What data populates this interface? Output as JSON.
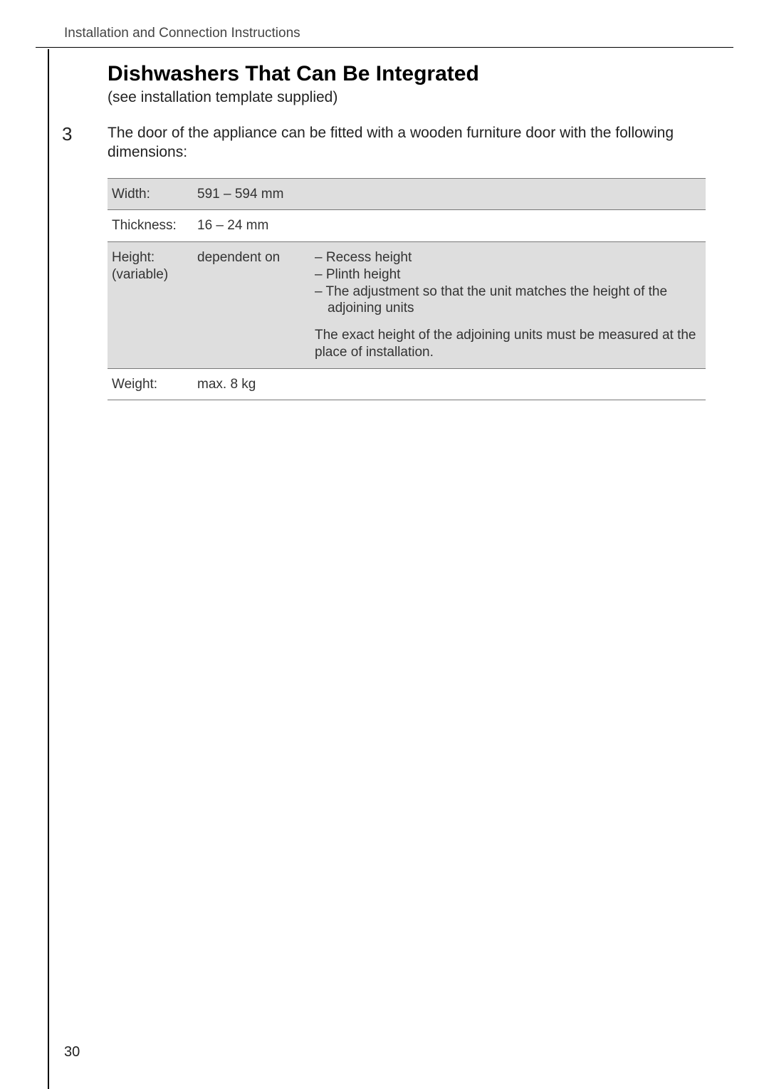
{
  "header": "Installation and Connection Instructions",
  "title": "Dishwashers That Can Be Integrated",
  "subtitle": "(see installation template supplied)",
  "step_number": "3",
  "intro": "The door of the appliance can be fitted with a wooden furniture door with the following dimensions:",
  "table": {
    "rows": [
      {
        "label": "Width:",
        "value": "591 – 594 mm",
        "notes_list": [],
        "notes_para": ""
      },
      {
        "label": "Thickness:",
        "value": "16 – 24 mm",
        "notes_list": [],
        "notes_para": ""
      },
      {
        "label": "Height: (variable)",
        "value": "dependent on",
        "notes_list": [
          "Recess height",
          "Plinth height",
          "The adjustment so that the unit matches the height of the adjoining units"
        ],
        "notes_para": "The exact height of the adjoining units must be measured at the place of installation."
      },
      {
        "label": "Weight:",
        "value": "max. 8 kg",
        "notes_list": [],
        "notes_para": ""
      }
    ]
  },
  "page_number": "30"
}
